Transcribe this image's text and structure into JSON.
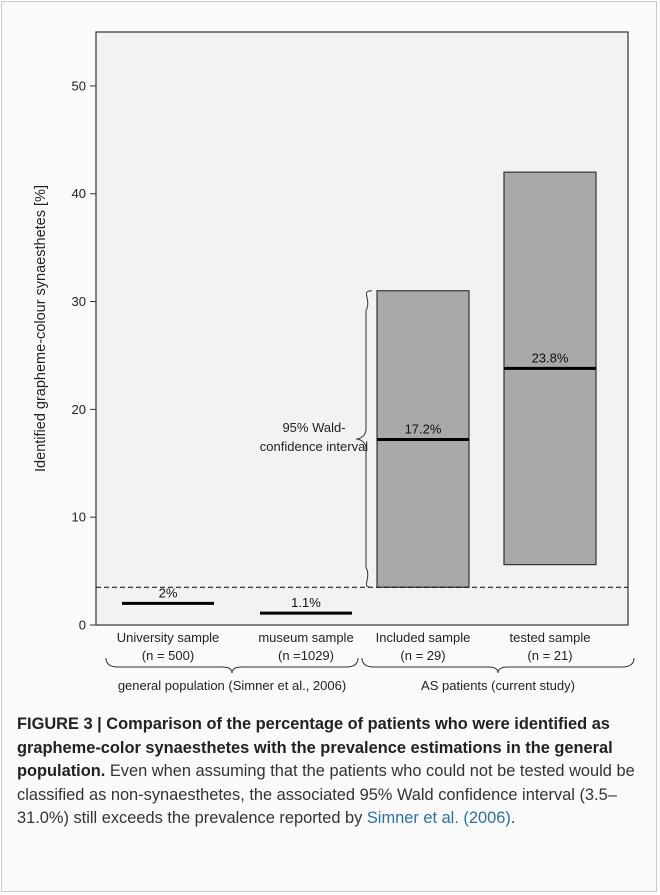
{
  "chart_data": {
    "type": "range-bar",
    "ylabel": "Identified grapheme-colour synaesthetes [%]",
    "ylim": [
      0,
      55
    ],
    "yticks": [
      0,
      10,
      20,
      30,
      40,
      50
    ],
    "grid": false,
    "categories": [
      {
        "label": "University sample",
        "n": "(n = 500)",
        "value": 2,
        "value_label": "2%",
        "ci": null
      },
      {
        "label": "museum sample",
        "n": "(n =1029)",
        "value": 1.1,
        "value_label": "1.1%",
        "ci": null
      },
      {
        "label": "Included sample",
        "n": "(n = 29)",
        "value": 17.2,
        "value_label": "17.2%",
        "ci": [
          3.5,
          31.0
        ]
      },
      {
        "label": "tested sample",
        "n": "(n = 21)",
        "value": 23.8,
        "value_label": "23.8%",
        "ci": [
          5.6,
          42.0
        ]
      }
    ],
    "reference_line": 3.5,
    "annotation": [
      "95% Wald-",
      "confidence interval"
    ],
    "groups": [
      {
        "label": "general population (Simner et al., 2006)",
        "categories": [
          0,
          1
        ]
      },
      {
        "label": "AS patients (current study)",
        "categories": [
          2,
          3
        ]
      }
    ],
    "colors": {
      "bar_fill": "#a9a9a9",
      "plot_bg": "#f2f2f2",
      "line": "#000000"
    }
  },
  "caption": {
    "bold": "FIGURE 3 | Comparison of the percentage of patients who were identified as grapheme-color synaesthetes with the prevalence estimations in the general population.",
    "text": " Even when assuming that the patients who could not be tested would be classified as non-synaesthetes, the associated 95% Wald confidence interval (3.5–31.0%) still exceeds the prevalence reported by ",
    "citation": "Simner et al. (2006)",
    "end": "."
  }
}
